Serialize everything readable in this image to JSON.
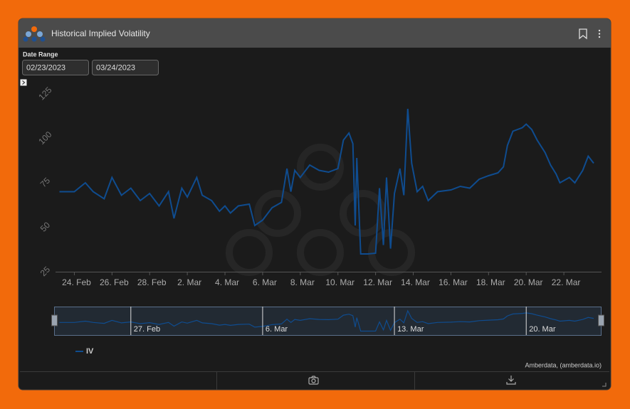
{
  "header": {
    "title": "Historical Implied Volatility"
  },
  "date_range": {
    "label": "Date Range",
    "start": "02/23/2023",
    "end": "03/24/2023"
  },
  "chart_data": {
    "type": "line",
    "x": [
      "2023-02-23T05:00",
      "2023-02-24T00:00",
      "2023-02-24T14:00",
      "2023-02-25T00:00",
      "2023-02-25T14:00",
      "2023-02-26T00:00",
      "2023-02-26T12:00",
      "2023-02-27T00:00",
      "2023-02-27T12:00",
      "2023-02-28T00:00",
      "2023-02-28T12:00",
      "2023-03-01T00:00",
      "2023-03-01T07:00",
      "2023-03-01T17:00",
      "2023-03-02T00:00",
      "2023-03-02T12:00",
      "2023-03-02T19:00",
      "2023-03-03T07:00",
      "2023-03-03T17:00",
      "2023-03-04T00:00",
      "2023-03-04T07:00",
      "2023-03-04T17:00",
      "2023-03-05T07:00",
      "2023-03-05T14:00",
      "2023-03-06T00:00",
      "2023-03-06T12:00",
      "2023-03-07T00:00",
      "2023-03-07T07:00",
      "2023-03-07T12:00",
      "2023-03-07T17:00",
      "2023-03-08T00:00",
      "2023-03-08T12:00",
      "2023-03-09T00:00",
      "2023-03-09T12:00",
      "2023-03-10T00:00",
      "2023-03-10T07:00",
      "2023-03-10T14:00",
      "2023-03-10T19:00",
      "2023-03-10T22:00",
      "2023-03-11T00:00",
      "2023-03-11T05:00",
      "2023-03-11T14:00",
      "2023-03-12T00:00",
      "2023-03-12T05:00",
      "2023-03-12T10:00",
      "2023-03-12T14:00",
      "2023-03-12T19:00",
      "2023-03-13T00:00",
      "2023-03-13T07:00",
      "2023-03-13T12:00",
      "2023-03-13T17:00",
      "2023-03-13T22:00",
      "2023-03-14T05:00",
      "2023-03-14T12:00",
      "2023-03-14T19:00",
      "2023-03-15T07:00",
      "2023-03-16T00:00",
      "2023-03-16T12:00",
      "2023-03-17T00:00",
      "2023-03-17T12:00",
      "2023-03-18T00:00",
      "2023-03-18T12:00",
      "2023-03-18T19:00",
      "2023-03-19T00:00",
      "2023-03-19T07:00",
      "2023-03-19T19:00",
      "2023-03-20T00:00",
      "2023-03-20T07:00",
      "2023-03-20T14:00",
      "2023-03-21T00:00",
      "2023-03-21T07:00",
      "2023-03-21T14:00",
      "2023-03-21T19:00",
      "2023-03-22T07:00",
      "2023-03-22T14:00",
      "2023-03-23T00:00",
      "2023-03-23T07:00",
      "2023-03-23T14:00"
    ],
    "series": [
      {
        "name": "IV",
        "color": "#0f4c8f",
        "values": [
          70,
          70,
          75,
          70,
          66,
          78,
          68,
          72,
          65,
          69,
          62,
          70,
          55,
          72,
          67,
          78,
          68,
          65,
          59,
          62,
          58,
          62,
          63,
          51,
          54,
          61,
          64,
          83,
          70,
          82,
          78,
          85,
          82,
          81,
          83,
          99,
          103,
          97,
          51,
          89,
          35,
          35,
          35.4,
          72,
          40,
          78,
          38,
          69,
          83,
          68,
          116.6,
          86,
          70,
          73,
          65,
          70,
          71,
          73,
          72,
          77,
          79,
          80.6,
          84,
          96,
          104,
          106,
          108,
          105,
          99,
          92,
          85,
          80,
          75,
          78,
          75,
          82,
          90,
          86
        ]
      }
    ],
    "xlim": [
      "2023-02-23T00:00",
      "2023-03-24T00:00"
    ],
    "xticks": [
      {
        "value": "2023-02-24T00:00",
        "label": "24. Feb"
      },
      {
        "value": "2023-02-26T00:00",
        "label": "26. Feb"
      },
      {
        "value": "2023-02-28T00:00",
        "label": "28. Feb"
      },
      {
        "value": "2023-03-02T00:00",
        "label": "2. Mar"
      },
      {
        "value": "2023-03-04T00:00",
        "label": "4. Mar"
      },
      {
        "value": "2023-03-06T00:00",
        "label": "6. Mar"
      },
      {
        "value": "2023-03-08T00:00",
        "label": "8. Mar"
      },
      {
        "value": "2023-03-10T00:00",
        "label": "10. Mar"
      },
      {
        "value": "2023-03-12T00:00",
        "label": "12. Mar"
      },
      {
        "value": "2023-03-14T00:00",
        "label": "14. Mar"
      },
      {
        "value": "2023-03-16T00:00",
        "label": "16. Mar"
      },
      {
        "value": "2023-03-18T00:00",
        "label": "18. Mar"
      },
      {
        "value": "2023-03-20T00:00",
        "label": "20. Mar"
      },
      {
        "value": "2023-03-22T00:00",
        "label": "22. Mar"
      }
    ],
    "ylim": [
      25,
      125
    ],
    "yticks": [
      25,
      50,
      75,
      100,
      125
    ],
    "grid": false,
    "navigator": {
      "xticks": [
        {
          "value": "2023-02-27T00:00",
          "label": "27. Feb"
        },
        {
          "value": "2023-03-06T00:00",
          "label": "6. Mar"
        },
        {
          "value": "2023-03-13T00:00",
          "label": "13. Mar"
        },
        {
          "value": "2023-03-20T00:00",
          "label": "20. Mar"
        }
      ]
    },
    "credits": "Amberdata, (amberdata.io)"
  }
}
